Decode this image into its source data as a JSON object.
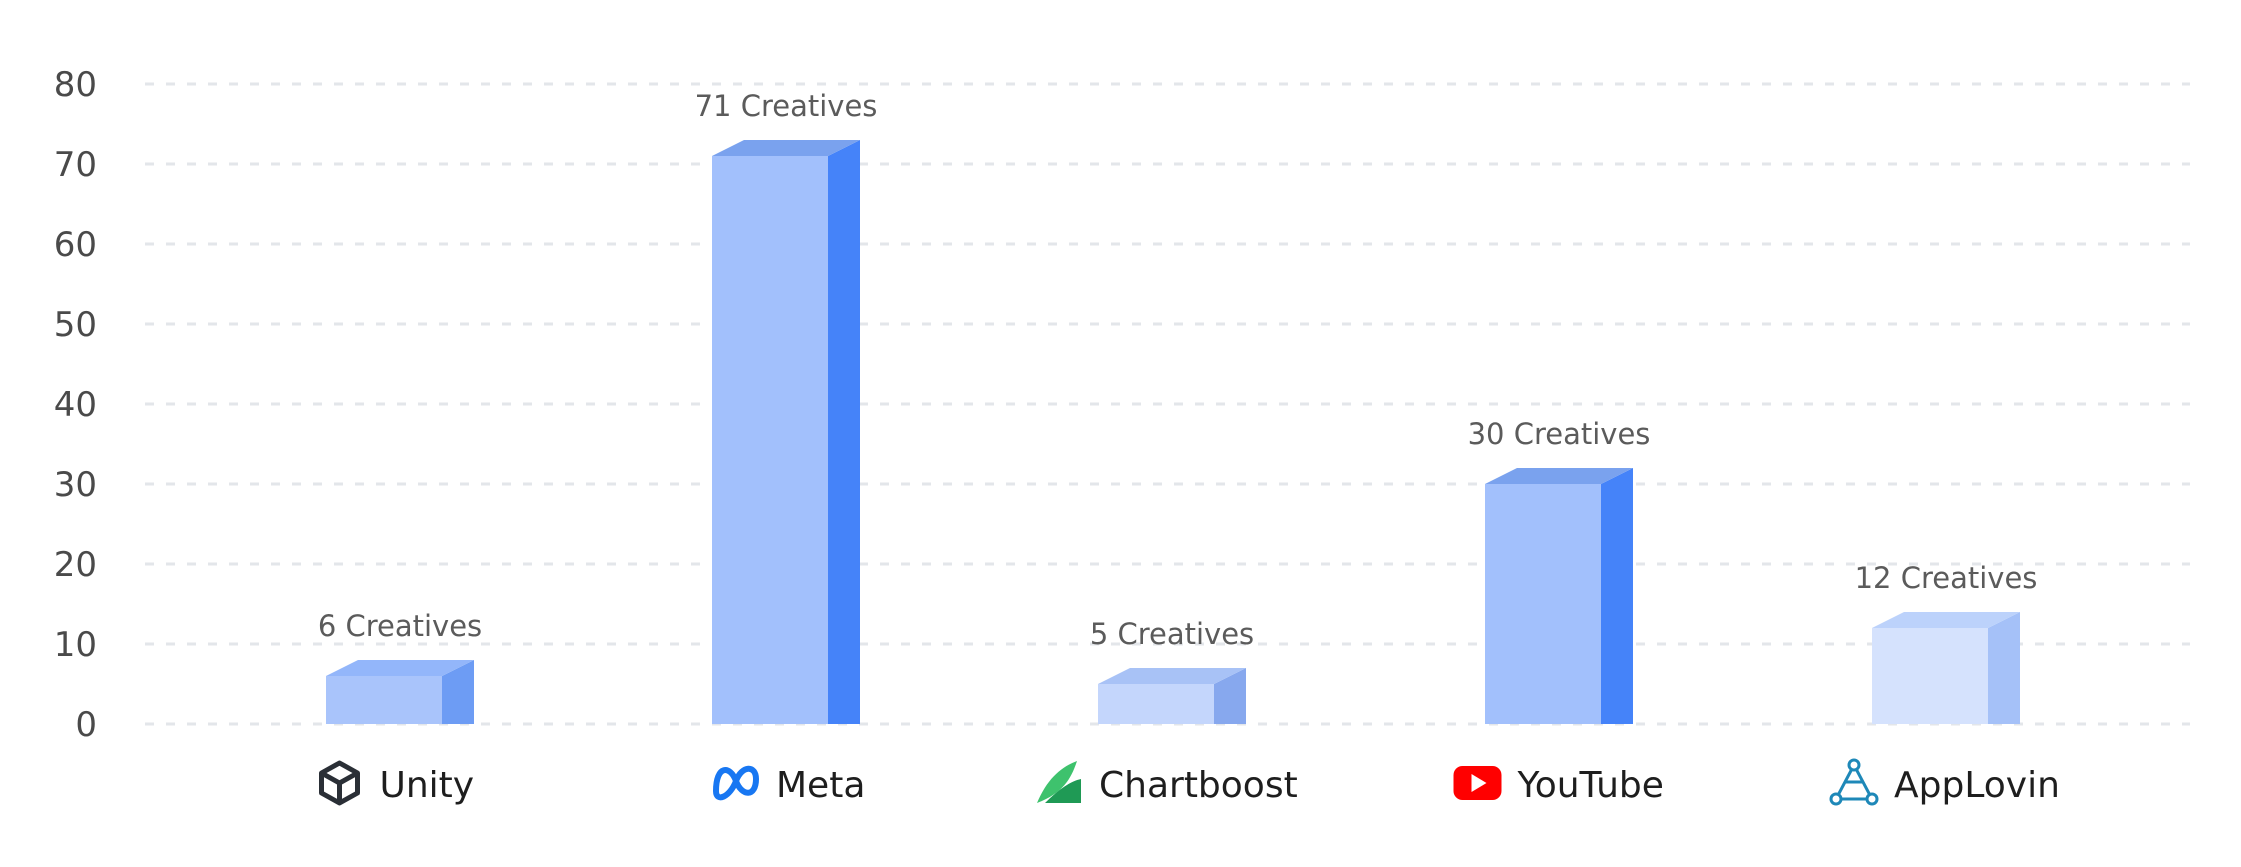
{
  "chart_data": {
    "type": "bar",
    "categories": [
      "Unity",
      "Meta",
      "Chartboost",
      "YouTube",
      "AppLovin"
    ],
    "values": [
      6,
      71,
      5,
      30,
      12
    ],
    "data_labels": [
      "6 Creatives",
      "71 Creatives",
      "5 Creatives",
      "30 Creatives",
      "12 Creatives"
    ],
    "yticks": [
      "0",
      "10",
      "20",
      "30",
      "40",
      "50",
      "60",
      "70",
      "80"
    ],
    "ylim": [
      0,
      80
    ],
    "grid": true,
    "title": "",
    "xlabel": "",
    "ylabel": "",
    "category_icons": [
      "unity-icon",
      "meta-icon",
      "chartboost-icon",
      "youtube-icon",
      "applovin-icon"
    ],
    "bar_colors": [
      {
        "front": "#a9c4fb",
        "side": "#6d9cf4",
        "top": "#93b6fa"
      },
      {
        "front": "#a2c0fc",
        "side": "#4583f9",
        "top": "#7aa2ee"
      },
      {
        "front": "#c4d6fc",
        "side": "#87a8ee",
        "top": "#a8c2f6"
      },
      {
        "front": "#a2c0fc",
        "side": "#4583f9",
        "top": "#7aa2ee"
      },
      {
        "front": "#d5e2fd",
        "side": "#a5c1f8",
        "top": "#bcd2fb"
      }
    ]
  }
}
